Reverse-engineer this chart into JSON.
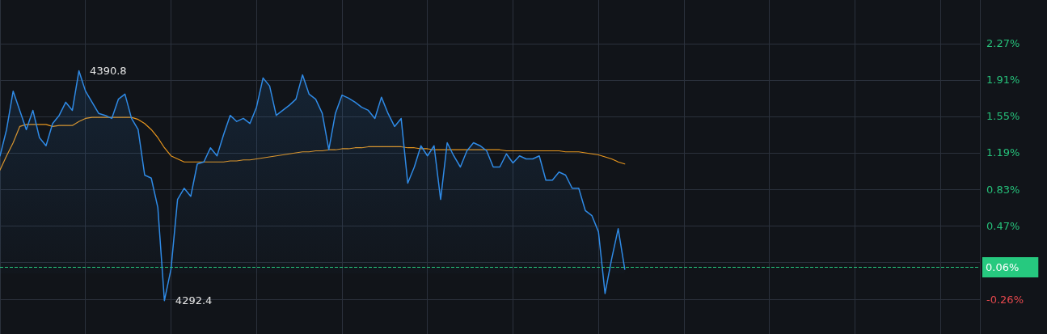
{
  "chart_data": {
    "type": "line",
    "categories": [
      null,
      null,
      null,
      null,
      null,
      null,
      null,
      null,
      null,
      null,
      null,
      null,
      null,
      null,
      null,
      null,
      null,
      null,
      null,
      null,
      null,
      null,
      null,
      null,
      null,
      null,
      null,
      null,
      null,
      null,
      null,
      null,
      null,
      null,
      null,
      null,
      null,
      null,
      null,
      null,
      null,
      null,
      null,
      null,
      null,
      null,
      null,
      null,
      null,
      null,
      null,
      null,
      null,
      null,
      null,
      null,
      null,
      null,
      null,
      null,
      null,
      null,
      null,
      null,
      null,
      null,
      null,
      null,
      null,
      null,
      null,
      null,
      null,
      null,
      null,
      null,
      null,
      null,
      null,
      null,
      null,
      null,
      null,
      null,
      null,
      null,
      null,
      null,
      null,
      null,
      null,
      null,
      null,
      null,
      null,
      null,
      null,
      null,
      null,
      null,
      null,
      null,
      null,
      null,
      null,
      null,
      null,
      null,
      null,
      null,
      null,
      null,
      null,
      null,
      null,
      null,
      null,
      null,
      null,
      null,
      null,
      null,
      null,
      null,
      null,
      null,
      null,
      null,
      null,
      null,
      null,
      null,
      null,
      null,
      null,
      null,
      null,
      null,
      null,
      null,
      null,
      null,
      null,
      null,
      null,
      null,
      null,
      null,
      null,
      null
    ],
    "series": [
      {
        "type": "area",
        "color": "#2f8ae5",
        "values": [
          1.16,
          1.42,
          1.8,
          1.61,
          1.42,
          1.61,
          1.34,
          1.26,
          1.48,
          1.56,
          1.69,
          1.61,
          2.0,
          1.8,
          1.69,
          1.58,
          1.56,
          1.53,
          1.72,
          1.77,
          1.53,
          1.42,
          0.97,
          0.94,
          0.65,
          -0.27,
          0.04,
          0.73,
          0.84,
          0.76,
          1.08,
          1.1,
          1.24,
          1.16,
          1.37,
          1.56,
          1.5,
          1.53,
          1.48,
          1.64,
          1.93,
          1.85,
          1.56,
          1.61,
          1.66,
          1.72,
          1.96,
          1.77,
          1.72,
          1.58,
          1.22,
          1.58,
          1.76,
          1.73,
          1.69,
          1.64,
          1.61,
          1.53,
          1.74,
          1.58,
          1.45,
          1.53,
          0.89,
          1.05,
          1.26,
          1.16,
          1.26,
          0.73,
          1.29,
          1.16,
          1.05,
          1.21,
          1.29,
          1.26,
          1.21,
          1.05,
          1.05,
          1.18,
          1.09,
          1.16,
          1.13,
          1.13,
          1.16,
          0.92,
          0.92,
          1.0,
          0.97,
          0.84,
          0.84,
          0.62,
          0.57,
          0.41,
          -0.2,
          0.14,
          0.44,
          0.04,
          null,
          null,
          null,
          null,
          null,
          null,
          null,
          null,
          null,
          null,
          null,
          null,
          null,
          null,
          null,
          null,
          null,
          null,
          null,
          null,
          null,
          null,
          null,
          null,
          null,
          null,
          null,
          null,
          null,
          null,
          null,
          null,
          null,
          null,
          null,
          null,
          null,
          null,
          null,
          null,
          null,
          null,
          null,
          null,
          null,
          null,
          null,
          null,
          null,
          null,
          null,
          null,
          null,
          null
        ]
      },
      {
        "color": "#e8961e",
        "values": [
          1.02,
          1.16,
          1.29,
          1.45,
          1.47,
          1.47,
          1.47,
          1.47,
          1.45,
          1.46,
          1.46,
          1.46,
          1.5,
          1.53,
          1.54,
          1.54,
          1.54,
          1.54,
          1.54,
          1.54,
          1.54,
          1.52,
          1.48,
          1.42,
          1.34,
          1.24,
          1.16,
          1.13,
          1.1,
          1.1,
          1.1,
          1.1,
          1.1,
          1.1,
          1.1,
          1.11,
          1.11,
          1.12,
          1.12,
          1.13,
          1.14,
          1.15,
          1.16,
          1.17,
          1.18,
          1.19,
          1.2,
          1.2,
          1.21,
          1.21,
          1.22,
          1.22,
          1.23,
          1.23,
          1.24,
          1.24,
          1.25,
          1.25,
          1.25,
          1.25,
          1.25,
          1.25,
          1.24,
          1.24,
          1.23,
          1.23,
          1.22,
          1.22,
          1.22,
          1.22,
          1.22,
          1.22,
          1.22,
          1.22,
          1.22,
          1.22,
          1.22,
          1.21,
          1.21,
          1.21,
          1.21,
          1.21,
          1.21,
          1.21,
          1.21,
          1.21,
          1.2,
          1.2,
          1.2,
          1.19,
          1.18,
          1.17,
          1.15,
          1.13,
          1.1,
          1.08,
          null,
          null,
          null,
          null,
          null,
          null,
          null,
          null,
          null,
          null,
          null,
          null,
          null,
          null,
          null,
          null,
          null,
          null,
          null,
          null,
          null,
          null,
          null,
          null,
          null,
          null,
          null,
          null,
          null,
          null,
          null,
          null,
          null,
          null,
          null,
          null,
          null,
          null,
          null,
          null,
          null,
          null,
          null,
          null,
          null,
          null,
          null,
          null,
          null,
          null,
          null,
          null,
          null,
          null
        ]
      }
    ],
    "ylim": [
      -0.6,
      2.7
    ],
    "yticks": [
      {
        "value": 2.27,
        "label": "2.27%"
      },
      {
        "value": 1.91,
        "label": "1.91%"
      },
      {
        "value": 1.55,
        "label": "1.55%"
      },
      {
        "value": 1.19,
        "label": "1.19%"
      },
      {
        "value": 0.83,
        "label": "0.83%"
      },
      {
        "value": 0.47,
        "label": "0.47%"
      },
      {
        "value": 0.11,
        "label": null
      },
      {
        "value": -0.26,
        "label": "-0.26%"
      }
    ],
    "ref_lines": [
      {
        "axis": "y",
        "value": 0.06,
        "label": "0.06%",
        "color": "#26c97f",
        "line_style": "dashed"
      }
    ],
    "annotations": [
      "4390.8",
      "4292.4"
    ],
    "grid": true,
    "line_style": "solid"
  }
}
